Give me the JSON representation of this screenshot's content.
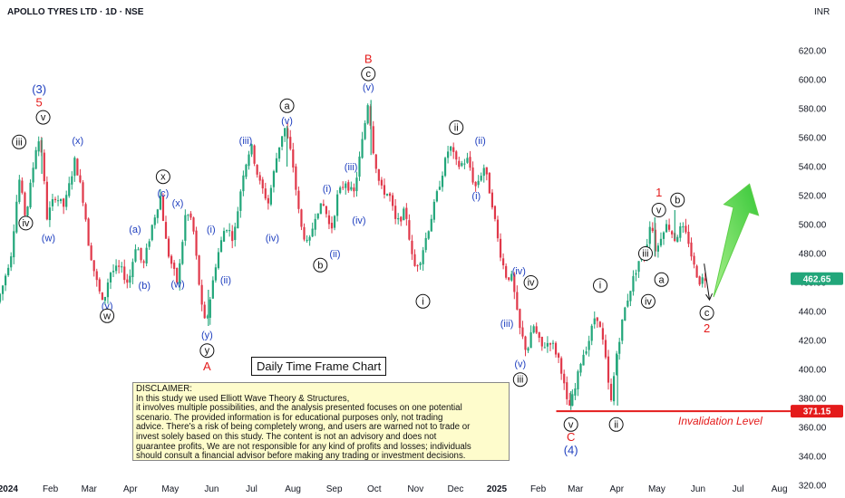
{
  "header": {
    "title": "APOLLO TYRES LTD · 1D · NSE",
    "currency": "INR"
  },
  "chart_data": {
    "type": "candlestick",
    "symbol": "APOLLO TYRES LTD",
    "timeframe": "1D",
    "exchange": "NSE",
    "currency": "INR",
    "ylim": [
      310,
      630
    ],
    "y_ticks": [
      "620.00",
      "600.00",
      "580.00",
      "560.00",
      "540.00",
      "520.00",
      "500.00",
      "480.00",
      "460.00",
      "440.00",
      "420.00",
      "400.00",
      "380.00",
      "360.00",
      "340.00",
      "320.00"
    ],
    "x_labels": [
      "2024",
      "Feb",
      "Mar",
      "Apr",
      "May",
      "Jun",
      "Jul",
      "Aug",
      "Sep",
      "Oct",
      "Nov",
      "Dec",
      "2025",
      "Feb",
      "Mar",
      "Apr",
      "May",
      "Jun",
      "Jul",
      "Aug"
    ],
    "x_bold": [
      "2024",
      "2025"
    ],
    "price_path": [
      [
        "2023-12-26",
        435
      ],
      [
        "2024-01-03",
        455
      ],
      [
        "2024-01-10",
        480
      ],
      [
        "2024-01-16",
        532
      ],
      [
        "2024-01-21",
        504
      ],
      [
        "2024-01-29",
        555
      ],
      [
        "2024-02-01",
        560
      ],
      [
        "2024-02-06",
        505
      ],
      [
        "2024-02-12",
        520
      ],
      [
        "2024-02-19",
        512
      ],
      [
        "2024-02-27",
        545
      ],
      [
        "2024-03-05",
        513
      ],
      [
        "2024-03-08",
        488
      ],
      [
        "2024-03-13",
        465
      ],
      [
        "2024-03-19",
        444
      ],
      [
        "2024-03-24",
        467
      ],
      [
        "2024-04-01",
        470
      ],
      [
        "2024-04-07",
        459
      ],
      [
        "2024-04-13",
        488
      ],
      [
        "2024-04-18",
        470
      ],
      [
        "2024-04-25",
        500
      ],
      [
        "2024-05-01",
        520
      ],
      [
        "2024-05-06",
        483
      ],
      [
        "2024-05-14",
        459
      ],
      [
        "2024-05-20",
        508
      ],
      [
        "2024-05-25",
        503
      ],
      [
        "2024-06-01",
        443
      ],
      [
        "2024-06-04",
        430
      ],
      [
        "2024-06-12",
        475
      ],
      [
        "2024-06-19",
        500
      ],
      [
        "2024-06-25",
        490
      ],
      [
        "2024-07-02",
        535
      ],
      [
        "2024-07-08",
        555
      ],
      [
        "2024-07-14",
        530
      ],
      [
        "2024-07-21",
        515
      ],
      [
        "2024-07-28",
        550
      ],
      [
        "2024-08-02",
        568
      ],
      [
        "2024-08-08",
        545
      ],
      [
        "2024-08-14",
        500
      ],
      [
        "2024-08-20",
        484
      ],
      [
        "2024-08-26",
        510
      ],
      [
        "2024-09-01",
        513
      ],
      [
        "2024-09-06",
        495
      ],
      [
        "2024-09-11",
        520
      ],
      [
        "2024-09-17",
        530
      ],
      [
        "2024-09-23",
        520
      ],
      [
        "2024-09-30",
        560
      ],
      [
        "2024-10-04",
        586
      ],
      [
        "2024-10-08",
        550
      ],
      [
        "2024-10-13",
        525
      ],
      [
        "2024-10-20",
        520
      ],
      [
        "2024-10-25",
        500
      ],
      [
        "2024-11-01",
        510
      ],
      [
        "2024-11-07",
        470
      ],
      [
        "2024-11-12",
        476
      ],
      [
        "2024-11-19",
        500
      ],
      [
        "2024-11-27",
        530
      ],
      [
        "2024-12-04",
        555
      ],
      [
        "2024-12-10",
        540
      ],
      [
        "2024-12-18",
        545
      ],
      [
        "2024-12-23",
        525
      ],
      [
        "2024-12-30",
        540
      ],
      [
        "2025-01-05",
        515
      ],
      [
        "2025-01-10",
        485
      ],
      [
        "2025-01-15",
        465
      ],
      [
        "2025-01-20",
        463
      ],
      [
        "2025-01-25",
        430
      ],
      [
        "2025-01-31",
        412
      ],
      [
        "2025-02-05",
        430
      ],
      [
        "2025-02-11",
        415
      ],
      [
        "2025-02-18",
        420
      ],
      [
        "2025-02-25",
        405
      ],
      [
        "2025-03-03",
        372
      ],
      [
        "2025-03-08",
        385
      ],
      [
        "2025-03-13",
        408
      ],
      [
        "2025-03-18",
        418
      ],
      [
        "2025-03-24",
        440
      ],
      [
        "2025-03-30",
        415
      ],
      [
        "2025-04-04",
        375
      ],
      [
        "2025-04-08",
        409
      ],
      [
        "2025-04-14",
        440
      ],
      [
        "2025-04-20",
        460
      ],
      [
        "2025-04-25",
        475
      ],
      [
        "2025-04-30",
        480
      ],
      [
        "2025-05-04",
        505
      ],
      [
        "2025-05-08",
        480
      ],
      [
        "2025-05-13",
        497
      ],
      [
        "2025-05-17",
        500
      ],
      [
        "2025-05-22",
        490
      ],
      [
        "2025-05-27",
        498
      ],
      [
        "2025-06-01",
        490
      ],
      [
        "2025-06-05",
        472
      ],
      [
        "2025-06-10",
        460
      ],
      [
        "2025-06-12",
        463
      ]
    ],
    "last_price": "462.65",
    "invalidation_price": "371.15",
    "invalidation_label": "Invalidation Level",
    "projection_path": [
      [
        "2025-06-11",
        473
      ],
      [
        "2025-06-15",
        448
      ]
    ],
    "target_arrow": {
      "from": [
        "2025-06-18",
        450
      ],
      "to": [
        "2025-07-15",
        528
      ]
    },
    "wave_labels": [
      {
        "text": "(3)",
        "color": "blue",
        "date": "2024-01-29",
        "price": 593
      },
      {
        "text": "5",
        "color": "red",
        "date": "2024-01-29",
        "price": 584
      },
      {
        "text": "v",
        "color": "circle",
        "date": "2024-02-01",
        "price": 574
      },
      {
        "text": "iii",
        "color": "circle",
        "date": "2024-01-14",
        "price": 557
      },
      {
        "text": "iv",
        "color": "circle",
        "date": "2024-01-19",
        "price": 501
      },
      {
        "text": "(w)",
        "color": "blue",
        "date": "2024-02-05",
        "price": 491
      },
      {
        "text": "(x)",
        "color": "blue",
        "date": "2024-02-27",
        "price": 558
      },
      {
        "text": "x",
        "color": "circle",
        "date": "2024-05-01",
        "price": 533
      },
      {
        "text": "(c)",
        "color": "blue",
        "date": "2024-05-01",
        "price": 522
      },
      {
        "text": "(x)",
        "color": "blue",
        "date": "2024-05-12",
        "price": 515
      },
      {
        "text": "(a)",
        "color": "blue",
        "date": "2024-04-10",
        "price": 497
      },
      {
        "text": "(b)",
        "color": "blue",
        "date": "2024-04-17",
        "price": 458
      },
      {
        "text": "(w)",
        "color": "blue",
        "date": "2024-05-12",
        "price": 459
      },
      {
        "text": "(y)",
        "color": "blue",
        "date": "2024-03-20",
        "price": 444
      },
      {
        "text": "w",
        "color": "circle",
        "date": "2024-03-20",
        "price": 437
      },
      {
        "text": "(y)",
        "color": "blue",
        "date": "2024-06-03",
        "price": 424
      },
      {
        "text": "y",
        "color": "circle",
        "date": "2024-06-03",
        "price": 413
      },
      {
        "text": "A",
        "color": "red",
        "date": "2024-06-03",
        "price": 402
      },
      {
        "text": "(i)",
        "color": "blue",
        "date": "2024-06-06",
        "price": 497
      },
      {
        "text": "(ii)",
        "color": "blue",
        "date": "2024-06-17",
        "price": 462
      },
      {
        "text": "(iii)",
        "color": "blue",
        "date": "2024-07-02",
        "price": 558
      },
      {
        "text": "(iv)",
        "color": "blue",
        "date": "2024-07-22",
        "price": 491
      },
      {
        "text": "a",
        "color": "circle",
        "date": "2024-08-02",
        "price": 582
      },
      {
        "text": "(v)",
        "color": "blue",
        "date": "2024-08-02",
        "price": 572
      },
      {
        "text": "b",
        "color": "circle",
        "date": "2024-08-27",
        "price": 472
      },
      {
        "text": "(i)",
        "color": "blue",
        "date": "2024-09-01",
        "price": 525
      },
      {
        "text": "(ii)",
        "color": "blue",
        "date": "2024-09-07",
        "price": 480
      },
      {
        "text": "(iii)",
        "color": "blue",
        "date": "2024-09-19",
        "price": 540
      },
      {
        "text": "(iv)",
        "color": "blue",
        "date": "2024-09-25",
        "price": 503
      },
      {
        "text": "B",
        "color": "red",
        "date": "2024-10-02",
        "price": 614
      },
      {
        "text": "c",
        "color": "circle",
        "date": "2024-10-02",
        "price": 604
      },
      {
        "text": "(v)",
        "color": "blue",
        "date": "2024-10-02",
        "price": 595
      },
      {
        "text": "i",
        "color": "circle",
        "date": "2024-11-12",
        "price": 447
      },
      {
        "text": "ii",
        "color": "circle",
        "date": "2024-12-07",
        "price": 567
      },
      {
        "text": "(ii)",
        "color": "blue",
        "date": "2024-12-25",
        "price": 558
      },
      {
        "text": "(i)",
        "color": "blue",
        "date": "2024-12-22",
        "price": 520
      },
      {
        "text": "(iv)",
        "color": "blue",
        "date": "2025-01-23",
        "price": 468
      },
      {
        "text": "iv",
        "color": "circle",
        "date": "2025-02-01",
        "price": 460
      },
      {
        "text": "(iii)",
        "color": "blue",
        "date": "2025-01-14",
        "price": 432
      },
      {
        "text": "(v)",
        "color": "blue",
        "date": "2025-01-24",
        "price": 404
      },
      {
        "text": "iii",
        "color": "circle",
        "date": "2025-01-24",
        "price": 393
      },
      {
        "text": "v",
        "color": "circle",
        "date": "2025-03-03",
        "price": 362
      },
      {
        "text": "C",
        "color": "red",
        "date": "2025-03-03",
        "price": 353
      },
      {
        "text": "(4)",
        "color": "blue",
        "date": "2025-03-03",
        "price": 344
      },
      {
        "text": "ii",
        "color": "circle",
        "date": "2025-04-06",
        "price": 362
      },
      {
        "text": "i",
        "color": "circle",
        "date": "2025-03-25",
        "price": 458
      },
      {
        "text": "iii",
        "color": "circle",
        "date": "2025-04-28",
        "price": 480
      },
      {
        "text": "iv",
        "color": "circle",
        "date": "2025-04-30",
        "price": 447
      },
      {
        "text": "a",
        "color": "circle",
        "date": "2025-05-10",
        "price": 462
      },
      {
        "text": "1",
        "color": "red",
        "date": "2025-05-08",
        "price": 522
      },
      {
        "text": "v",
        "color": "circle",
        "date": "2025-05-08",
        "price": 510
      },
      {
        "text": "b",
        "color": "circle",
        "date": "2025-05-22",
        "price": 517
      },
      {
        "text": "c",
        "color": "circle",
        "date": "2025-06-13",
        "price": 439
      },
      {
        "text": "2",
        "color": "red",
        "date": "2025-06-13",
        "price": 428
      }
    ],
    "annotations": {
      "title_box": "Daily Time Frame Chart",
      "disclaimer": [
        "DISCLAIMER:",
        "In this study we used Elliott Wave Theory & Structures,",
        "it involves multiple possibilities, and the analysis presented focuses on one potential",
        "scenario. The provided information is for educational purposes only, not trading",
        "advice. There's a risk of being completely wrong, and users are warned not to trade or",
        "invest solely based on this study. The content is not an advisory and does not",
        "guarantee profits, We are not responsible for any kind of profits and losses; individuals",
        "should consult a financial advisor before making any trading or investment decisions."
      ]
    },
    "colors": {
      "up": "#22a67a",
      "down": "#e0384a",
      "last_price_tag": "#22a67a",
      "invalidation": "#e41b1b",
      "wave_blue": "#1f3fbf",
      "wave_red": "#e41b1b",
      "arrow": "#7be05a"
    }
  }
}
